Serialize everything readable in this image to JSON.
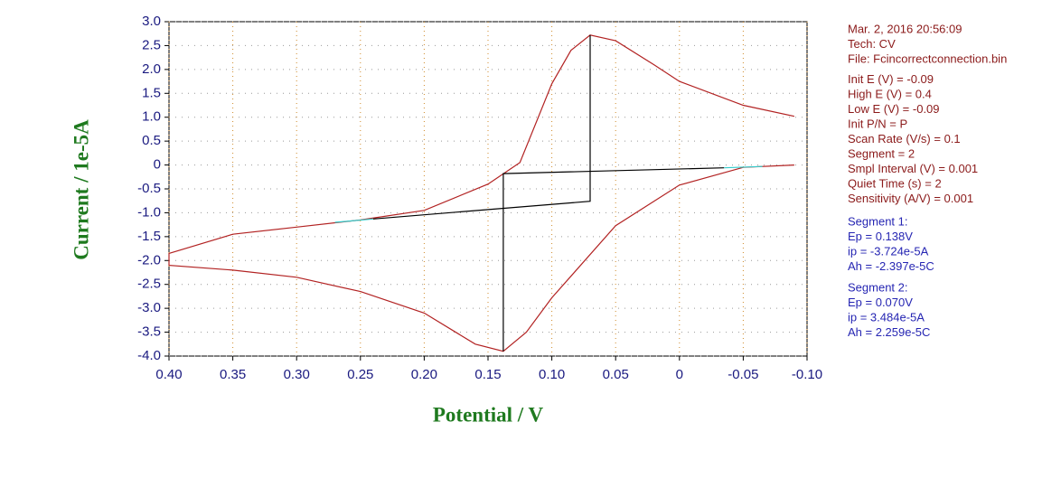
{
  "chart_data": {
    "type": "line",
    "x_label": "Potential / V",
    "y_label": "Current / 1e-5A",
    "xlim": [
      0.4,
      -0.1
    ],
    "ylim": [
      -4,
      3
    ],
    "xticks": [
      {
        "value": 0.4,
        "label": "0.40"
      },
      0.35,
      {
        "value": 0.3,
        "label": "0.30"
      },
      0.25,
      {
        "value": 0.2,
        "label": "0.20"
      },
      0.15,
      {
        "value": 0.1,
        "label": "0.10"
      },
      0.05,
      0,
      -0.05,
      {
        "value": -0.1,
        "label": "-0.10"
      }
    ],
    "yticks": [
      {
        "value": 3,
        "label": "3.0"
      },
      2.5,
      {
        "value": 2,
        "label": "2.0"
      },
      1.5,
      {
        "value": 1,
        "label": "1.0"
      },
      0.5,
      0,
      -0.5,
      {
        "value": -1,
        "label": "-1.0"
      },
      -1.5,
      {
        "value": -2,
        "label": "-2.0"
      },
      -2.5,
      {
        "value": -3,
        "label": "-3.0"
      },
      -3.5,
      {
        "value": -4,
        "label": "-4.0"
      }
    ],
    "grid": true,
    "series": [
      {
        "color": "#b22222",
        "x": [
          -0.09,
          -0.05,
          0,
          0.05,
          0.1,
          0.12,
          0.138,
          0.16,
          0.2,
          0.25,
          0.3,
          0.35,
          0.4,
          0.4,
          0.35,
          0.3,
          0.25,
          0.2,
          0.15,
          0.125,
          0.1,
          0.085,
          0.07,
          0.05,
          0.02,
          0,
          -0.05,
          -0.09
        ],
        "values": [
          0.0,
          -0.05,
          -0.42,
          -1.27,
          -2.78,
          -3.5,
          -3.9,
          -3.75,
          -3.1,
          -2.65,
          -2.35,
          -2.2,
          -2.1,
          -1.85,
          -1.45,
          -1.3,
          -1.15,
          -0.95,
          -0.4,
          0.05,
          1.7,
          2.4,
          2.72,
          2.6,
          2.1,
          1.75,
          1.25,
          1.02
        ]
      },
      {
        "color": "#000000",
        "x": [
          0.07,
          0.07,
          0.24
        ],
        "values": [
          2.72,
          -0.76,
          -1.13
        ]
      },
      {
        "color": "#000000",
        "x": [
          0.138,
          0.138,
          -0.035
        ],
        "values": [
          -3.9,
          -0.18,
          -0.06
        ]
      },
      {
        "color": "#33cccc",
        "x": [
          0.27,
          0.24
        ],
        "values": [
          -1.2,
          -1.13
        ]
      },
      {
        "color": "#33cccc",
        "x": [
          -0.035,
          -0.065
        ],
        "values": [
          -0.06,
          -0.03
        ]
      }
    ]
  },
  "info_panel": {
    "header": [
      "Mar. 2, 2016   20:56:09",
      "Tech: CV",
      "File: Fcincorrectconnection.bin"
    ],
    "params": [
      "Init E (V) = -0.09",
      "High E (V) = 0.4",
      "Low E (V) = -0.09",
      "Init P/N = P",
      "Scan Rate (V/s) = 0.1",
      "Segment = 2",
      "Smpl Interval (V) = 0.001",
      "Quiet Time (s) = 2",
      "Sensitivity (A/V) = 0.001"
    ],
    "segments": [
      [
        "Segment 1:",
        "Ep = 0.138V",
        "ip = -3.724e-5A",
        "Ah = -2.397e-5C"
      ],
      [
        "Segment 2:",
        "Ep = 0.070V",
        "ip = 3.484e-5A",
        "Ah = 2.259e-5C"
      ]
    ]
  }
}
